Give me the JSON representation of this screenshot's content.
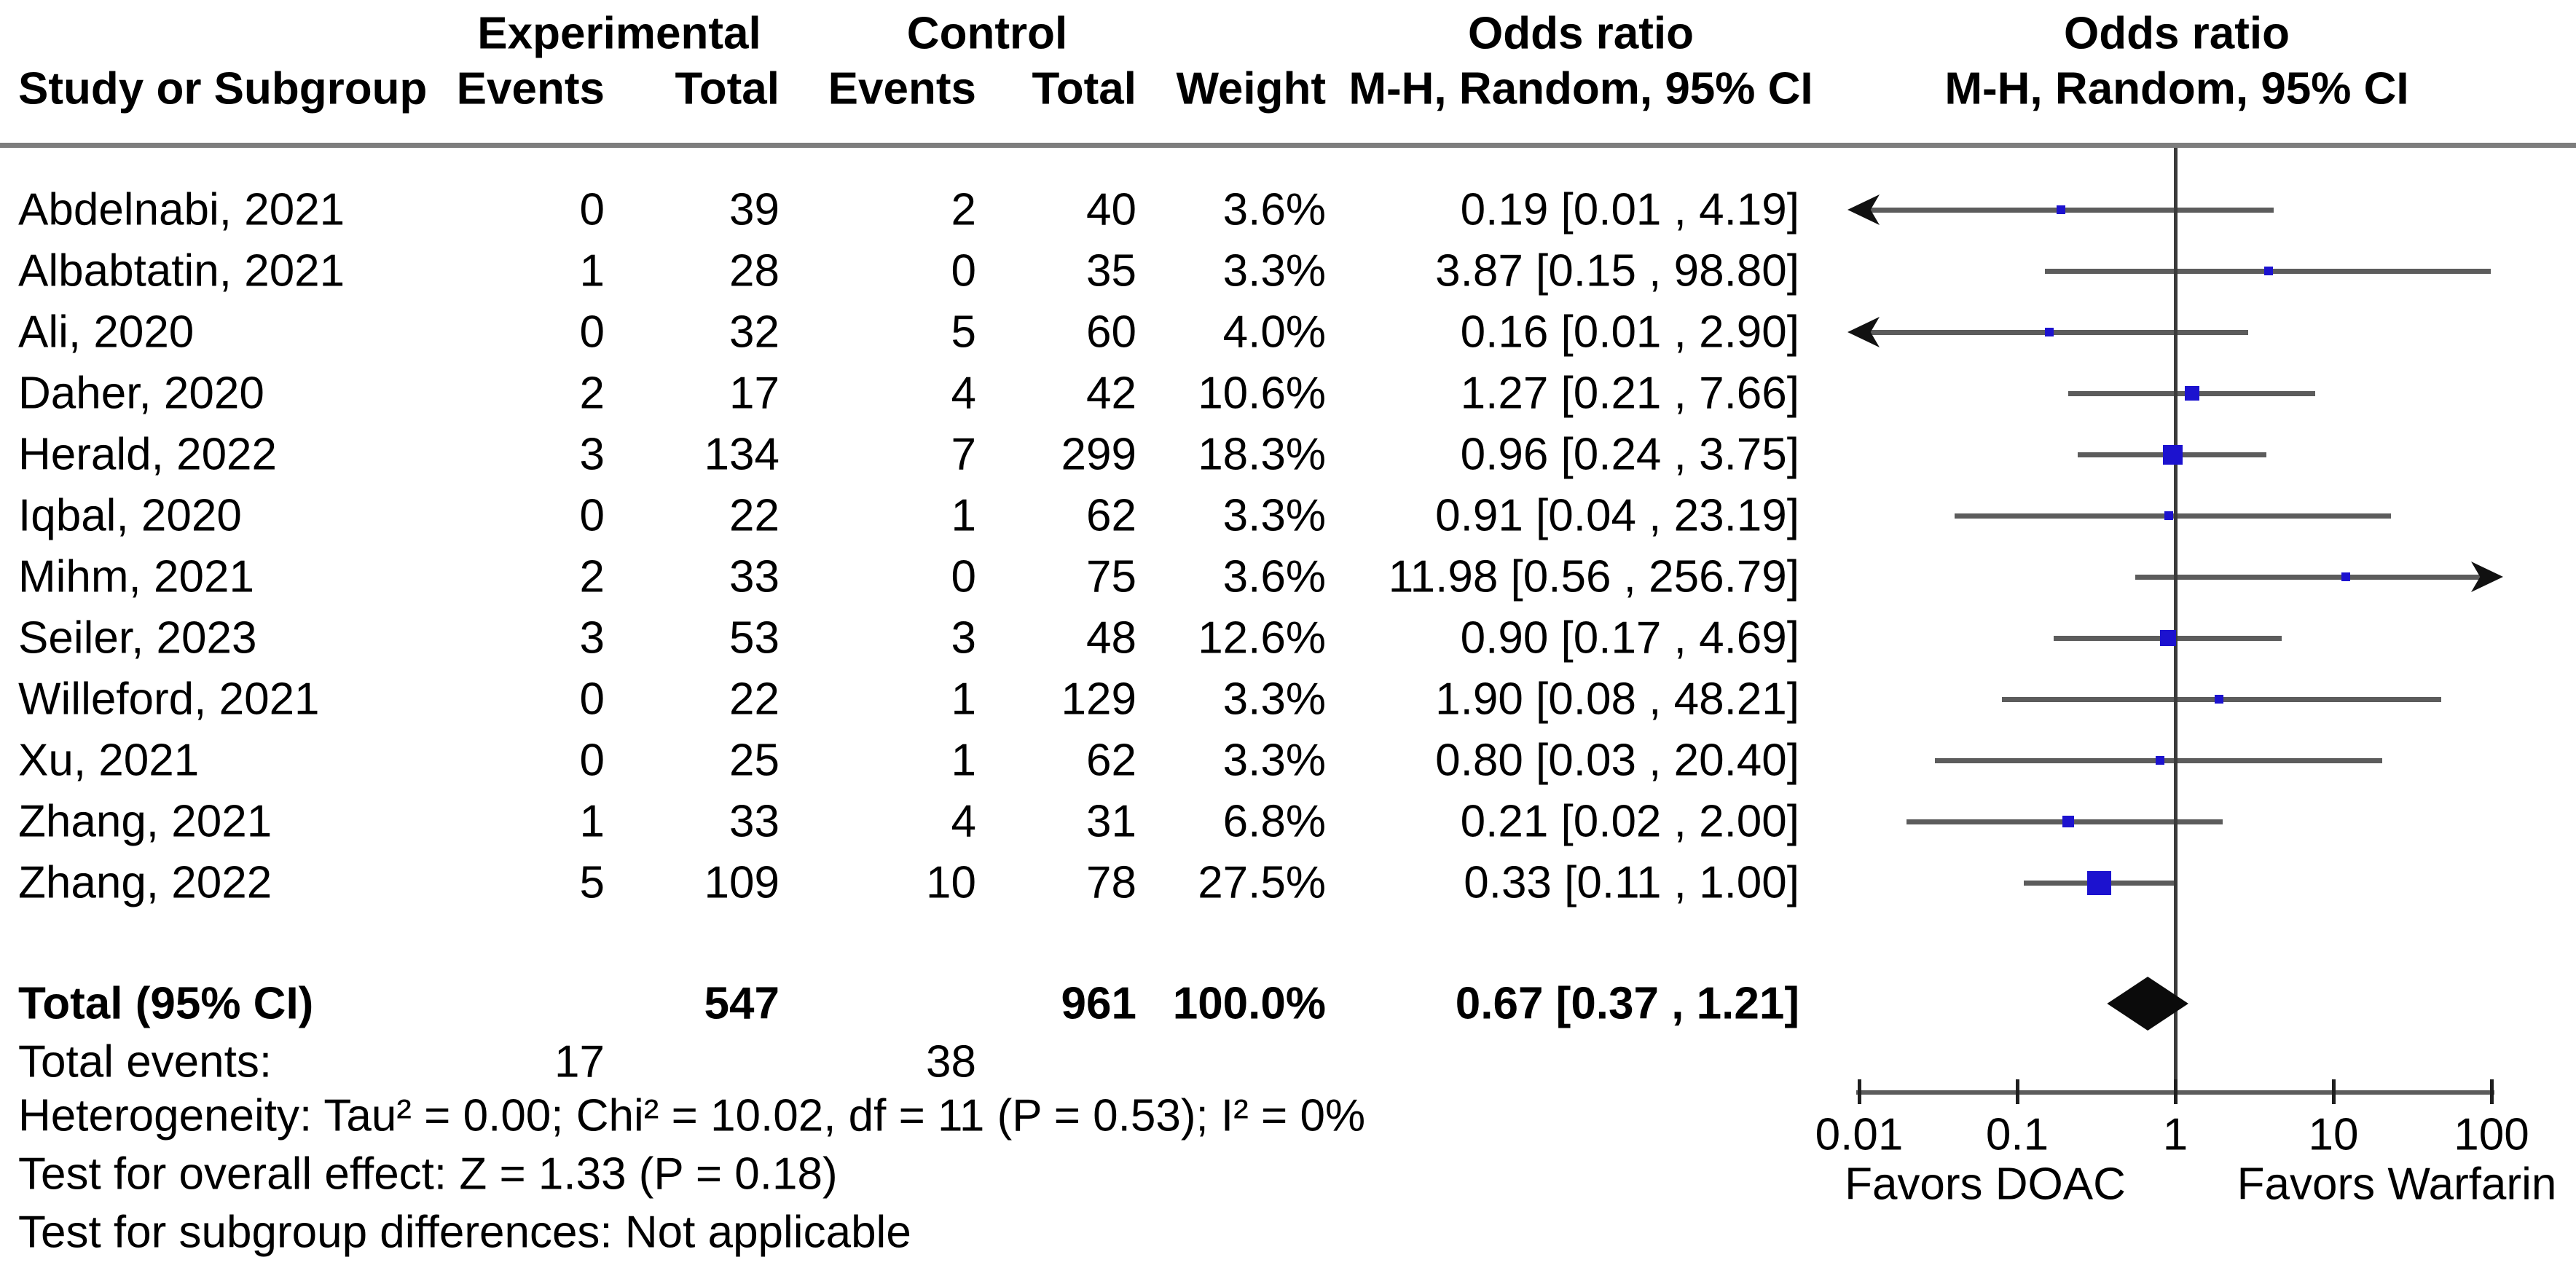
{
  "columns": {
    "study": "Study or Subgroup",
    "group_experimental": "Experimental",
    "group_control": "Control",
    "events": "Events",
    "total": "Total",
    "weight": "Weight",
    "odds_ratio_title": "Odds ratio",
    "odds_ratio_subtitle": "M-H, Random, 95% CI"
  },
  "chart_data": {
    "type": "scatter",
    "subtype": "forest-plot",
    "effect_measure": "Odds ratio, M-H, Random, 95% CI",
    "x_scale": "log10",
    "xlim": [
      0.01,
      100
    ],
    "x_ticks": [
      "0.01",
      "0.1",
      "1",
      "10",
      "100"
    ],
    "x_tick_values": [
      0.01,
      0.1,
      1,
      10,
      100
    ],
    "null_line": 1,
    "favors_left": "Favors DOAC",
    "favors_right": "Favors Warfarin",
    "studies": [
      {
        "study": "Abdelnabi, 2021",
        "exp_events": "0",
        "exp_total": "39",
        "ctrl_events": "2",
        "ctrl_total": "40",
        "weight": "3.6%",
        "weight_pct": 3.6,
        "or": 0.19,
        "ci_low": 0.01,
        "ci_high": 4.19,
        "or_label": "0.19 [0.01 , 4.19]"
      },
      {
        "study": "Albabtatin, 2021",
        "exp_events": "1",
        "exp_total": "28",
        "ctrl_events": "0",
        "ctrl_total": "35",
        "weight": "3.3%",
        "weight_pct": 3.3,
        "or": 3.87,
        "ci_low": 0.15,
        "ci_high": 98.8,
        "or_label": "3.87 [0.15 , 98.80]"
      },
      {
        "study": "Ali, 2020",
        "exp_events": "0",
        "exp_total": "32",
        "ctrl_events": "5",
        "ctrl_total": "60",
        "weight": "4.0%",
        "weight_pct": 4.0,
        "or": 0.16,
        "ci_low": 0.01,
        "ci_high": 2.9,
        "or_label": "0.16 [0.01 , 2.90]"
      },
      {
        "study": "Daher, 2020",
        "exp_events": "2",
        "exp_total": "17",
        "ctrl_events": "4",
        "ctrl_total": "42",
        "weight": "10.6%",
        "weight_pct": 10.6,
        "or": 1.27,
        "ci_low": 0.21,
        "ci_high": 7.66,
        "or_label": "1.27 [0.21 , 7.66]"
      },
      {
        "study": "Herald, 2022",
        "exp_events": "3",
        "exp_total": "134",
        "ctrl_events": "7",
        "ctrl_total": "299",
        "weight": "18.3%",
        "weight_pct": 18.3,
        "or": 0.96,
        "ci_low": 0.24,
        "ci_high": 3.75,
        "or_label": "0.96 [0.24 , 3.75]"
      },
      {
        "study": "Iqbal, 2020",
        "exp_events": "0",
        "exp_total": "22",
        "ctrl_events": "1",
        "ctrl_total": "62",
        "weight": "3.3%",
        "weight_pct": 3.3,
        "or": 0.91,
        "ci_low": 0.04,
        "ci_high": 23.19,
        "or_label": "0.91 [0.04 , 23.19]"
      },
      {
        "study": "Mihm, 2021",
        "exp_events": "2",
        "exp_total": "33",
        "ctrl_events": "0",
        "ctrl_total": "75",
        "weight": "3.6%",
        "weight_pct": 3.6,
        "or": 11.98,
        "ci_low": 0.56,
        "ci_high": 256.79,
        "or_label": "11.98 [0.56 , 256.79]"
      },
      {
        "study": "Seiler, 2023",
        "exp_events": "3",
        "exp_total": "53",
        "ctrl_events": "3",
        "ctrl_total": "48",
        "weight": "12.6%",
        "weight_pct": 12.6,
        "or": 0.9,
        "ci_low": 0.17,
        "ci_high": 4.69,
        "or_label": "0.90 [0.17 , 4.69]"
      },
      {
        "study": "Willeford, 2021",
        "exp_events": "0",
        "exp_total": "22",
        "ctrl_events": "1",
        "ctrl_total": "129",
        "weight": "3.3%",
        "weight_pct": 3.3,
        "or": 1.9,
        "ci_low": 0.08,
        "ci_high": 48.21,
        "or_label": "1.90 [0.08 , 48.21]"
      },
      {
        "study": "Xu, 2021",
        "exp_events": "0",
        "exp_total": "25",
        "ctrl_events": "1",
        "ctrl_total": "62",
        "weight": "3.3%",
        "weight_pct": 3.3,
        "or": 0.8,
        "ci_low": 0.03,
        "ci_high": 20.4,
        "or_label": "0.80 [0.03 , 20.40]"
      },
      {
        "study": "Zhang, 2021",
        "exp_events": "1",
        "exp_total": "33",
        "ctrl_events": "4",
        "ctrl_total": "31",
        "weight": "6.8%",
        "weight_pct": 6.8,
        "or": 0.21,
        "ci_low": 0.02,
        "ci_high": 2.0,
        "or_label": "0.21 [0.02 , 2.00]"
      },
      {
        "study": "Zhang, 2022",
        "exp_events": "5",
        "exp_total": "109",
        "ctrl_events": "10",
        "ctrl_total": "78",
        "weight": "27.5%",
        "weight_pct": 27.5,
        "or": 0.33,
        "ci_low": 0.11,
        "ci_high": 1.0,
        "or_label": "0.33 [0.11 , 1.00]"
      }
    ],
    "total": {
      "label": "Total (95% CI)",
      "exp_total": "547",
      "ctrl_total": "961",
      "weight": "100.0%",
      "weight_pct": 100.0,
      "or": 0.67,
      "ci_low": 0.37,
      "ci_high": 1.21,
      "or_label": "0.67 [0.37 , 1.21]"
    },
    "total_events": {
      "label": "Total events:",
      "experimental": "17",
      "control": "38"
    }
  },
  "footer": {
    "heterogeneity": "Heterogeneity: Tau² = 0.00; Chi² = 10.02, df = 11 (P = 0.53); I² = 0%",
    "overall_effect": "Test for overall effect: Z = 1.33 (P = 0.18)",
    "subgroup": "Test for subgroup differences: Not applicable"
  },
  "colors": {
    "marker": "#1c12cf",
    "summary_diamond": "#0b0b0b",
    "ci_line": "#5c5c5c",
    "null_line": "#3a3a3a",
    "header_rule": "#7d7d7d",
    "axis_line": "#5c5c5c",
    "axis_tick": "#1f1f1f",
    "text": "#000000"
  }
}
